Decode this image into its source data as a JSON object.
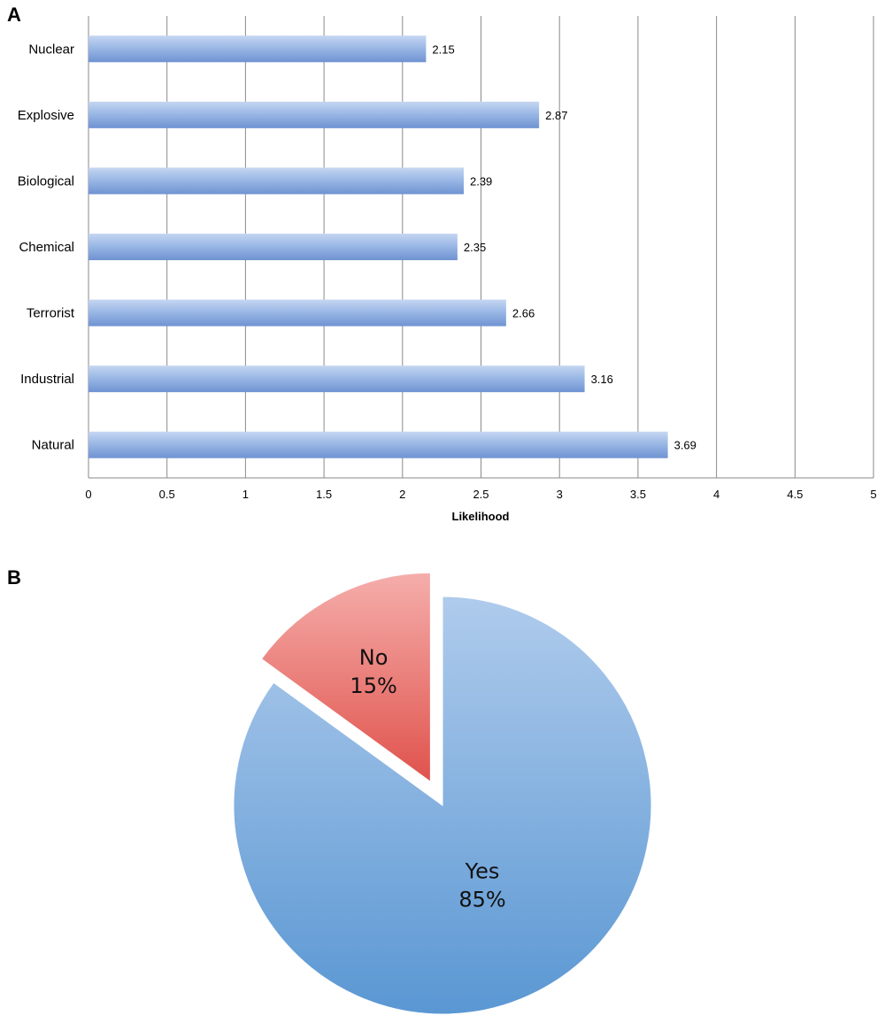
{
  "panels": {
    "a_label": "A",
    "b_label": "B"
  },
  "chart_data": [
    {
      "type": "bar",
      "orientation": "horizontal",
      "categories": [
        "Nuclear",
        "Explosive",
        "Biological",
        "Chemical",
        "Terrorist",
        "Industrial",
        "Natural"
      ],
      "values": [
        2.15,
        2.87,
        2.39,
        2.35,
        2.66,
        3.16,
        3.69
      ],
      "value_labels": [
        "2.15",
        "2.87",
        "2.39",
        "2.35",
        "2.66",
        "3.16",
        "3.69"
      ],
      "title": "",
      "xlabel": "Likelihood",
      "ylabel": "",
      "xlim": [
        0,
        5
      ],
      "x_ticks": [
        0,
        0.5,
        1,
        1.5,
        2,
        2.5,
        3,
        3.5,
        4,
        4.5,
        5
      ],
      "x_tick_labels": [
        "0",
        "0.5",
        "1",
        "1.5",
        "2",
        "2.5",
        "3",
        "3.5",
        "4",
        "4.5",
        "5"
      ],
      "grid": true,
      "bar_color": "#7a9fd9"
    },
    {
      "type": "pie",
      "slices": [
        {
          "label": "Yes",
          "value": 85,
          "value_label": "85%",
          "color": "#6a9fd8",
          "exploded": false
        },
        {
          "label": "No",
          "value": 15,
          "value_label": "15%",
          "color": "#e66a64",
          "exploded": true
        }
      ],
      "title": ""
    }
  ]
}
